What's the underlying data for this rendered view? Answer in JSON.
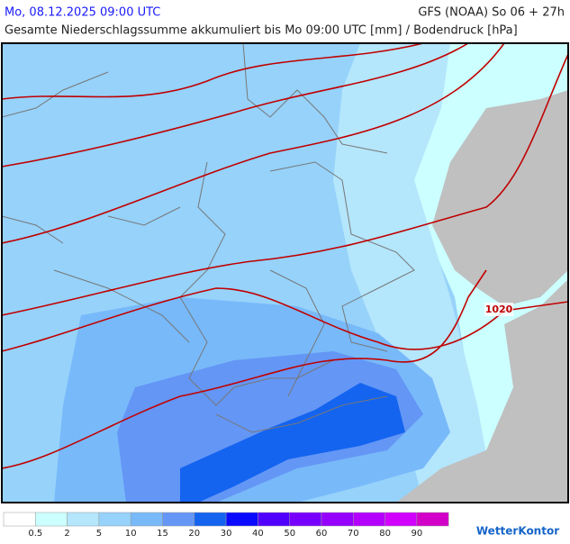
{
  "header": {
    "datetime": "Mo, 08.12.2025 09:00 UTC",
    "model": "GFS (NOAA) So 06 + 27h",
    "subtitle": "Gesamte Niederschlagssumme akkumuliert bis Mo 09:00 UTC [mm] / Bodendruck [hPa]"
  },
  "map": {
    "isobar_label": "1020"
  },
  "legend": {
    "colors": [
      "#ffffff",
      "#ccffff",
      "#b4e6fc",
      "#96d2fa",
      "#78b9fa",
      "#6496f5",
      "#1464f0",
      "#0a0aff",
      "#5000ff",
      "#7800ff",
      "#9600ff",
      "#b400ff",
      "#d200ff",
      "#d200c8"
    ],
    "labels": [
      "0.5",
      "2",
      "5",
      "10",
      "15",
      "20",
      "30",
      "40",
      "50",
      "60",
      "70",
      "80",
      "90"
    ]
  },
  "logo": "WetterKontor"
}
